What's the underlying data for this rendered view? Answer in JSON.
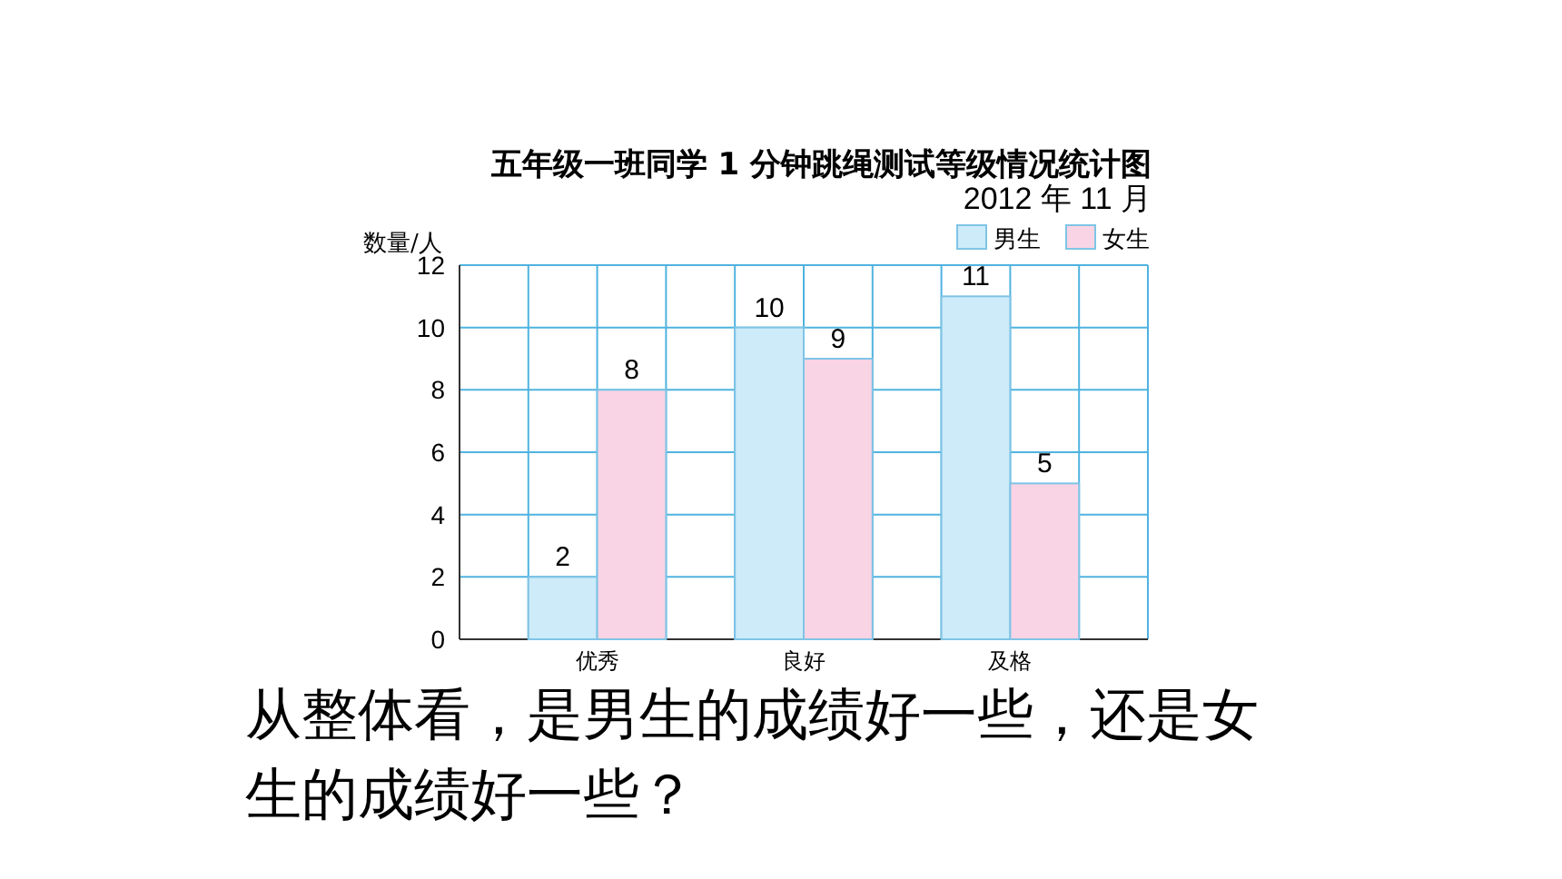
{
  "chart_data": {
    "type": "bar",
    "title": "五年级一班同学 1 分钟跳绳测试等级情况统计图",
    "subtitle": "2012 年 11 月",
    "ylabel": "数量/人",
    "categories": [
      "优秀",
      "良好",
      "及格"
    ],
    "series": [
      {
        "name": "男生",
        "color": "#cdebf8",
        "values": [
          2,
          10,
          11
        ]
      },
      {
        "name": "女生",
        "color": "#f9d4e4",
        "values": [
          8,
          9,
          5
        ]
      }
    ],
    "ylim": [
      0,
      12
    ],
    "yticks": [
      0,
      2,
      4,
      6,
      8,
      10,
      12
    ],
    "grid": true,
    "legend": "top right",
    "data_labels": true,
    "annotations": [
      "从整体看，是男生的成绩好一些，还是女生的成绩好一些？"
    ]
  }
}
